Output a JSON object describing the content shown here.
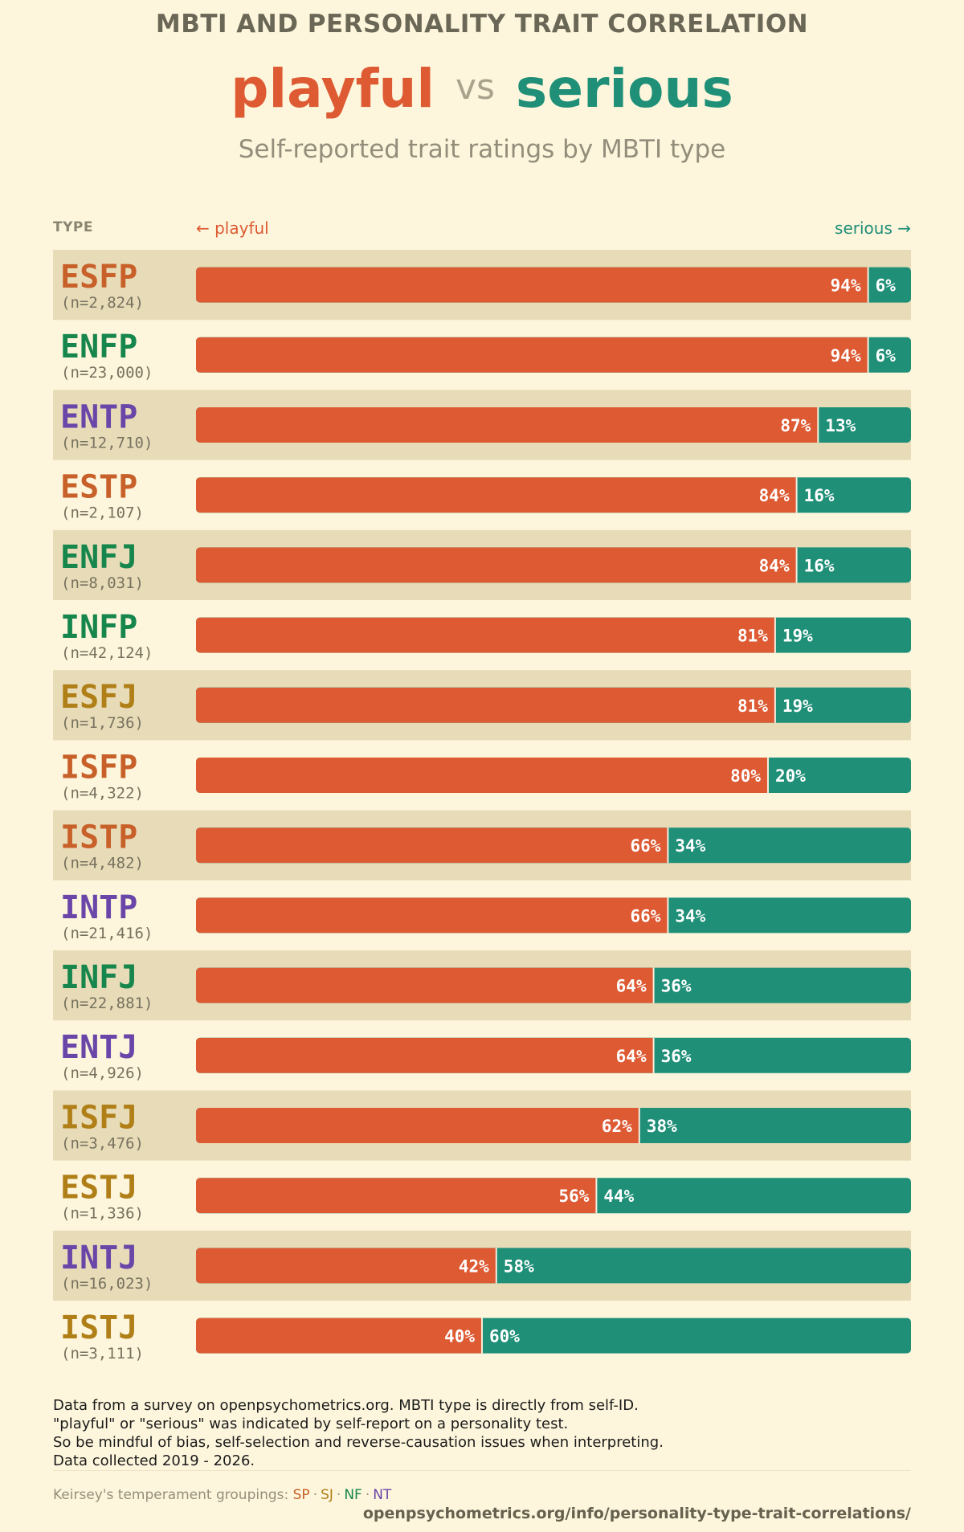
{
  "header": {
    "title": "MBTI AND PERSONALITY TRAIT CORRELATION",
    "left_word": "playful",
    "vs_word": "vs",
    "right_word": "serious",
    "subtitle": "Self-reported trait ratings by MBTI type"
  },
  "columns": {
    "type": "TYPE",
    "left": "← playful",
    "right": "serious →"
  },
  "colors": {
    "background": "#fdf6dc",
    "stripe": "#e8dcb8",
    "playful": "#dd5a33",
    "serious": "#1f8f78",
    "SP": "#c8602a",
    "SJ": "#b07f18",
    "NF": "#16864c",
    "NT": "#6a46a8"
  },
  "chart_data": {
    "type": "bar",
    "orientation": "horizontal",
    "stacked": true,
    "xlim": [
      0,
      100
    ],
    "series": [
      {
        "name": "playful",
        "values": [
          94,
          94,
          87,
          84,
          84,
          81,
          81,
          80,
          66,
          66,
          64,
          64,
          62,
          56,
          42,
          40
        ]
      },
      {
        "name": "serious",
        "values": [
          6,
          6,
          13,
          16,
          16,
          19,
          19,
          20,
          34,
          34,
          36,
          36,
          38,
          44,
          58,
          60
        ]
      }
    ],
    "rows": [
      {
        "type": "ESFP",
        "n": "(n=2,824)",
        "group": "SP",
        "playful": 94,
        "serious": 6,
        "playful_label": "94%",
        "serious_label": "6%"
      },
      {
        "type": "ENFP",
        "n": "(n=23,000)",
        "group": "NF",
        "playful": 94,
        "serious": 6,
        "playful_label": "94%",
        "serious_label": "6%"
      },
      {
        "type": "ENTP",
        "n": "(n=12,710)",
        "group": "NT",
        "playful": 87,
        "serious": 13,
        "playful_label": "87%",
        "serious_label": "13%"
      },
      {
        "type": "ESTP",
        "n": "(n=2,107)",
        "group": "SP",
        "playful": 84,
        "serious": 16,
        "playful_label": "84%",
        "serious_label": "16%"
      },
      {
        "type": "ENFJ",
        "n": "(n=8,031)",
        "group": "NF",
        "playful": 84,
        "serious": 16,
        "playful_label": "84%",
        "serious_label": "16%"
      },
      {
        "type": "INFP",
        "n": "(n=42,124)",
        "group": "NF",
        "playful": 81,
        "serious": 19,
        "playful_label": "81%",
        "serious_label": "19%"
      },
      {
        "type": "ESFJ",
        "n": "(n=1,736)",
        "group": "SJ",
        "playful": 81,
        "serious": 19,
        "playful_label": "81%",
        "serious_label": "19%"
      },
      {
        "type": "ISFP",
        "n": "(n=4,322)",
        "group": "SP",
        "playful": 80,
        "serious": 20,
        "playful_label": "80%",
        "serious_label": "20%"
      },
      {
        "type": "ISTP",
        "n": "(n=4,482)",
        "group": "SP",
        "playful": 66,
        "serious": 34,
        "playful_label": "66%",
        "serious_label": "34%"
      },
      {
        "type": "INTP",
        "n": "(n=21,416)",
        "group": "NT",
        "playful": 66,
        "serious": 34,
        "playful_label": "66%",
        "serious_label": "34%"
      },
      {
        "type": "INFJ",
        "n": "(n=22,881)",
        "group": "NF",
        "playful": 64,
        "serious": 36,
        "playful_label": "64%",
        "serious_label": "36%"
      },
      {
        "type": "ENTJ",
        "n": "(n=4,926)",
        "group": "NT",
        "playful": 64,
        "serious": 36,
        "playful_label": "64%",
        "serious_label": "36%"
      },
      {
        "type": "ISFJ",
        "n": "(n=3,476)",
        "group": "SJ",
        "playful": 62,
        "serious": 38,
        "playful_label": "62%",
        "serious_label": "38%"
      },
      {
        "type": "ESTJ",
        "n": "(n=1,336)",
        "group": "SJ",
        "playful": 56,
        "serious": 44,
        "playful_label": "56%",
        "serious_label": "44%"
      },
      {
        "type": "INTJ",
        "n": "(n=16,023)",
        "group": "NT",
        "playful": 42,
        "serious": 58,
        "playful_label": "42%",
        "serious_label": "58%"
      },
      {
        "type": "ISTJ",
        "n": "(n=3,111)",
        "group": "SJ",
        "playful": 40,
        "serious": 60,
        "playful_label": "40%",
        "serious_label": "60%"
      }
    ]
  },
  "footnote": {
    "line1": "Data from a survey on openpsychometrics.org. MBTI type is directly from self-ID.",
    "line2": "\"playful\" or \"serious\" was indicated by self-report on a personality test.",
    "line3": "So be mindful of bias, self-selection and reverse-causation issues when interpreting.",
    "line4": "Data collected 2019 - 2026."
  },
  "legend": {
    "prefix": "Keirsey's temperament groupings:",
    "separator": "·",
    "groups": [
      "SP",
      "SJ",
      "NF",
      "NT"
    ]
  },
  "source": "openpsychometrics.org/info/personality-type-trait-correlations/"
}
